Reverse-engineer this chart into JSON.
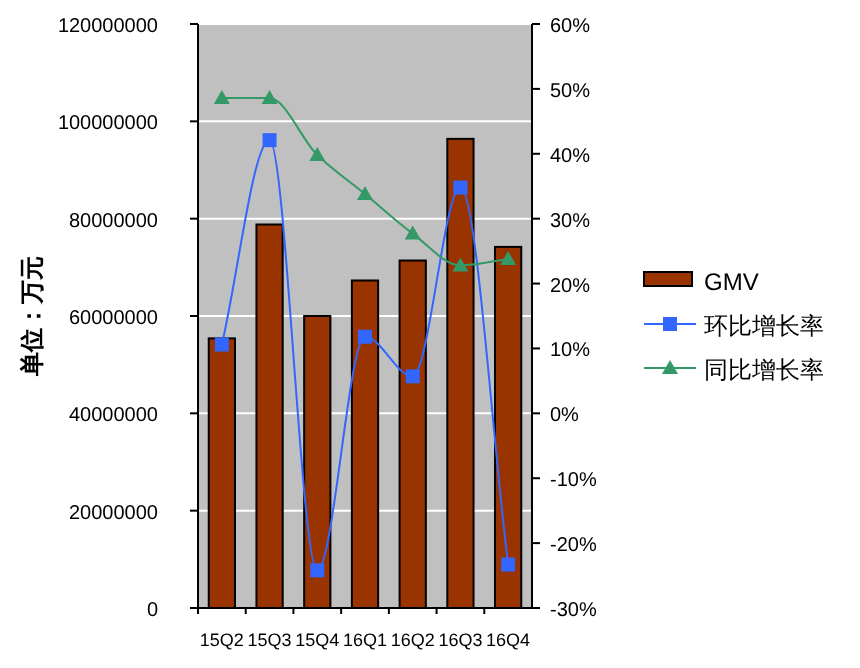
{
  "chart_data": {
    "type": "bar",
    "ylabel": "单位：万元",
    "categories": [
      "15Q2",
      "15Q3",
      "15Q4",
      "16Q1",
      "16Q2",
      "16Q3",
      "16Q4"
    ],
    "ylim": [
      0,
      120000000
    ],
    "yticks": [
      0,
      20000000,
      40000000,
      60000000,
      80000000,
      100000000,
      120000000
    ],
    "y2lim": [
      -30,
      60
    ],
    "y2ticks": [
      {
        "value": -30,
        "label": "-30%"
      },
      {
        "value": -20,
        "label": "-20%"
      },
      {
        "value": -10,
        "label": "-10%"
      },
      {
        "value": 0,
        "label": "0%"
      },
      {
        "value": 10,
        "label": "10%"
      },
      {
        "value": 20,
        "label": "20%"
      },
      {
        "value": 30,
        "label": "30%"
      },
      {
        "value": 40,
        "label": "40%"
      },
      {
        "value": 50,
        "label": "50%"
      },
      {
        "value": 60,
        "label": "60%"
      }
    ],
    "grid": "y",
    "legend": "right",
    "series": [
      {
        "name": "GMV",
        "color": "#993300",
        "values": [
          55400000,
          78800000,
          60000000,
          67300000,
          71400000,
          96400000,
          74200000
        ]
      },
      {
        "name": "环比增长率",
        "type": "line",
        "axis": "y2",
        "marker": "square",
        "color": "#3366ff",
        "values": [
          10.6,
          42.1,
          -24.2,
          11.8,
          5.7,
          34.8,
          -23.3
        ]
      },
      {
        "name": "同比增长率",
        "type": "line",
        "axis": "y2",
        "marker": "triangle",
        "color": "#339966",
        "values": [
          48.6,
          48.6,
          39.8,
          33.8,
          27.7,
          22.8,
          23.8
        ]
      }
    ]
  }
}
